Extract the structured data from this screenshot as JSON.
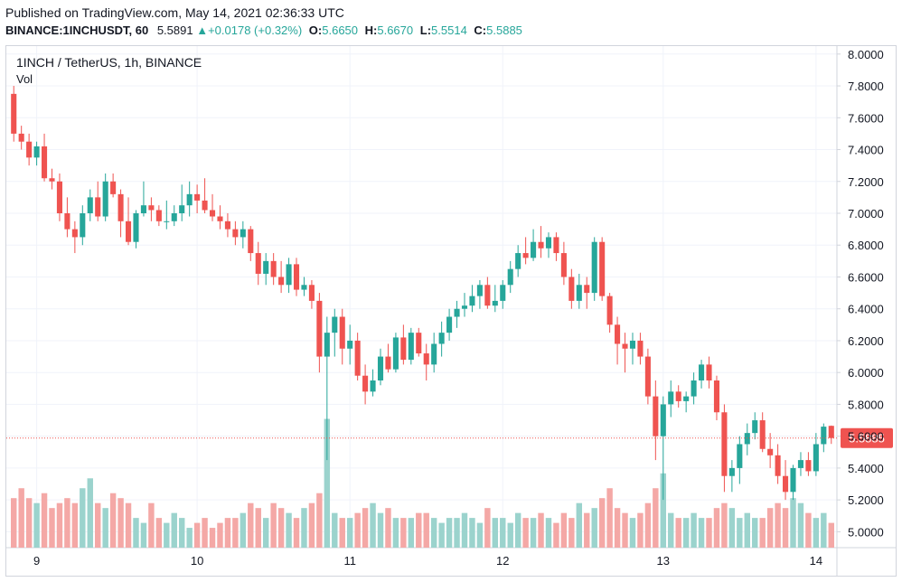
{
  "header": {
    "published": "Published on TradingView.com, May 14, 2021 02:36:33 UTC",
    "symbol": "BINANCE:1INCHUSDT, 60",
    "price": "5.5891",
    "change": "+0.0178 (+0.32%)",
    "o_label": "O:",
    "o_value": "5.6650",
    "h_label": "H:",
    "h_value": "5.6670",
    "l_label": "L:",
    "l_value": "5.5514",
    "c_label": "C:",
    "c_value": "5.5885"
  },
  "legend": {
    "title": "1INCH / TetherUS, 1h, BINANCE",
    "volume": "Vol"
  },
  "colors": {
    "up": "#26a69a",
    "down": "#ef5350",
    "vol_up": "#9bd3cd",
    "vol_down": "#f4a8a6",
    "grid": "#f0f3fa",
    "axis_line": "#d1d4dc",
    "last_price": "#ef5350"
  },
  "chart_data": {
    "type": "candlestick",
    "interval": "1h",
    "ylim": [
      4.9,
      8.05
    ],
    "y_ticks": [
      "8.0000",
      "7.8000",
      "7.6000",
      "7.4000",
      "7.2000",
      "7.0000",
      "6.8000",
      "6.6000",
      "6.4000",
      "6.2000",
      "6.0000",
      "5.8000",
      "5.6000",
      "5.4000",
      "5.2000",
      "5.0000"
    ],
    "x_ticks": [
      {
        "label": "9",
        "index": 3
      },
      {
        "label": "10",
        "index": 24
      },
      {
        "label": "11",
        "index": 44
      },
      {
        "label": "12",
        "index": 64
      },
      {
        "label": "13",
        "index": 85
      },
      {
        "label": "14",
        "index": 105
      }
    ],
    "last_price": 5.5885,
    "last_price_label": "5.5885",
    "candles": [
      [
        7.75,
        7.8,
        7.45,
        7.5
      ],
      [
        7.5,
        7.55,
        7.4,
        7.45
      ],
      [
        7.45,
        7.5,
        7.3,
        7.35
      ],
      [
        7.35,
        7.45,
        7.3,
        7.42
      ],
      [
        7.42,
        7.5,
        7.2,
        7.22
      ],
      [
        7.22,
        7.28,
        7.15,
        7.2
      ],
      [
        7.2,
        7.25,
        6.95,
        7.0
      ],
      [
        7.0,
        7.1,
        6.85,
        6.9
      ],
      [
        6.9,
        6.95,
        6.75,
        6.85
      ],
      [
        6.85,
        7.05,
        6.8,
        7.0
      ],
      [
        7.0,
        7.15,
        6.95,
        7.1
      ],
      [
        7.1,
        7.2,
        6.95,
        6.98
      ],
      [
        6.98,
        7.25,
        6.95,
        7.2
      ],
      [
        7.2,
        7.25,
        7.1,
        7.12
      ],
      [
        7.12,
        7.15,
        6.85,
        6.95
      ],
      [
        6.95,
        7.1,
        6.8,
        6.82
      ],
      [
        6.82,
        7.02,
        6.78,
        7.0
      ],
      [
        7.0,
        7.2,
        6.98,
        7.05
      ],
      [
        7.05,
        7.1,
        6.95,
        7.02
      ],
      [
        7.02,
        7.05,
        6.92,
        6.95
      ],
      [
        6.95,
        7.08,
        6.9,
        6.95
      ],
      [
        6.95,
        7.05,
        6.92,
        7.0
      ],
      [
        7.0,
        7.18,
        6.95,
        7.05
      ],
      [
        7.05,
        7.2,
        6.98,
        7.12
      ],
      [
        7.12,
        7.18,
        7.0,
        7.08
      ],
      [
        7.08,
        7.22,
        7.0,
        7.02
      ],
      [
        7.02,
        7.12,
        6.95,
        6.98
      ],
      [
        6.98,
        7.05,
        6.9,
        6.95
      ],
      [
        6.95,
        7.0,
        6.85,
        6.9
      ],
      [
        6.9,
        6.95,
        6.8,
        6.85
      ],
      [
        6.85,
        6.95,
        6.78,
        6.9
      ],
      [
        6.9,
        6.92,
        6.7,
        6.75
      ],
      [
        6.75,
        6.82,
        6.55,
        6.62
      ],
      [
        6.62,
        6.75,
        6.55,
        6.7
      ],
      [
        6.7,
        6.75,
        6.55,
        6.6
      ],
      [
        6.6,
        6.7,
        6.5,
        6.55
      ],
      [
        6.55,
        6.72,
        6.5,
        6.68
      ],
      [
        6.68,
        6.72,
        6.48,
        6.52
      ],
      [
        6.52,
        6.6,
        6.48,
        6.55
      ],
      [
        6.55,
        6.58,
        6.4,
        6.45
      ],
      [
        6.45,
        6.5,
        6.0,
        6.1
      ],
      [
        6.1,
        6.35,
        5.45,
        6.25
      ],
      [
        6.25,
        6.4,
        6.1,
        6.35
      ],
      [
        6.35,
        6.4,
        6.05,
        6.15
      ],
      [
        6.15,
        6.3,
        6.05,
        6.2
      ],
      [
        6.2,
        6.25,
        5.95,
        5.98
      ],
      [
        5.98,
        6.05,
        5.8,
        5.88
      ],
      [
        5.88,
        6.02,
        5.85,
        5.95
      ],
      [
        5.95,
        6.15,
        5.92,
        6.1
      ],
      [
        6.1,
        6.18,
        6.0,
        6.02
      ],
      [
        6.02,
        6.25,
        6.0,
        6.22
      ],
      [
        6.22,
        6.3,
        6.05,
        6.08
      ],
      [
        6.08,
        6.28,
        6.05,
        6.25
      ],
      [
        6.25,
        6.28,
        6.1,
        6.12
      ],
      [
        6.12,
        6.18,
        5.95,
        6.05
      ],
      [
        6.05,
        6.25,
        6.0,
        6.18
      ],
      [
        6.18,
        6.32,
        6.1,
        6.25
      ],
      [
        6.25,
        6.4,
        6.2,
        6.35
      ],
      [
        6.35,
        6.45,
        6.28,
        6.4
      ],
      [
        6.4,
        6.5,
        6.35,
        6.42
      ],
      [
        6.42,
        6.55,
        6.38,
        6.48
      ],
      [
        6.48,
        6.58,
        6.4,
        6.55
      ],
      [
        6.55,
        6.6,
        6.4,
        6.42
      ],
      [
        6.42,
        6.55,
        6.38,
        6.45
      ],
      [
        6.45,
        6.58,
        6.4,
        6.55
      ],
      [
        6.55,
        6.7,
        6.5,
        6.65
      ],
      [
        6.65,
        6.8,
        6.6,
        6.75
      ],
      [
        6.75,
        6.85,
        6.68,
        6.72
      ],
      [
        6.72,
        6.9,
        6.7,
        6.82
      ],
      [
        6.82,
        6.92,
        6.72,
        6.78
      ],
      [
        6.78,
        6.88,
        6.72,
        6.85
      ],
      [
        6.85,
        6.88,
        6.7,
        6.75
      ],
      [
        6.75,
        6.82,
        6.55,
        6.6
      ],
      [
        6.6,
        6.65,
        6.4,
        6.45
      ],
      [
        6.45,
        6.62,
        6.4,
        6.55
      ],
      [
        6.55,
        6.6,
        6.4,
        6.5
      ],
      [
        6.5,
        6.85,
        6.45,
        6.82
      ],
      [
        6.82,
        6.85,
        6.45,
        6.48
      ],
      [
        6.48,
        6.5,
        6.25,
        6.3
      ],
      [
        6.3,
        6.35,
        6.05,
        6.18
      ],
      [
        6.18,
        6.25,
        6.0,
        6.15
      ],
      [
        6.15,
        6.25,
        6.05,
        6.2
      ],
      [
        6.2,
        6.25,
        6.05,
        6.1
      ],
      [
        6.1,
        6.15,
        5.8,
        5.85
      ],
      [
        5.85,
        5.95,
        5.45,
        5.6
      ],
      [
        5.6,
        5.85,
        5.2,
        5.8
      ],
      [
        5.8,
        5.95,
        5.72,
        5.88
      ],
      [
        5.88,
        5.92,
        5.78,
        5.82
      ],
      [
        5.82,
        5.88,
        5.75,
        5.85
      ],
      [
        5.85,
        6.0,
        5.8,
        5.95
      ],
      [
        5.95,
        6.08,
        5.9,
        6.05
      ],
      [
        6.05,
        6.1,
        5.9,
        5.95
      ],
      [
        5.95,
        5.98,
        5.7,
        5.75
      ],
      [
        5.75,
        5.8,
        5.25,
        5.35
      ],
      [
        5.35,
        5.45,
        5.25,
        5.4
      ],
      [
        5.4,
        5.6,
        5.3,
        5.55
      ],
      [
        5.55,
        5.68,
        5.48,
        5.62
      ],
      [
        5.62,
        5.75,
        5.58,
        5.7
      ],
      [
        5.7,
        5.75,
        5.5,
        5.52
      ],
      [
        5.52,
        5.62,
        5.4,
        5.48
      ],
      [
        5.48,
        5.55,
        5.3,
        5.35
      ],
      [
        5.35,
        5.45,
        5.2,
        5.25
      ],
      [
        5.25,
        5.42,
        5.2,
        5.4
      ],
      [
        5.4,
        5.5,
        5.35,
        5.45
      ],
      [
        5.45,
        5.5,
        5.35,
        5.38
      ],
      [
        5.38,
        5.62,
        5.35,
        5.55
      ],
      [
        5.55,
        5.68,
        5.5,
        5.66
      ],
      [
        5.665,
        5.667,
        5.5514,
        5.5885
      ]
    ],
    "volumes": [
      0.5,
      0.6,
      0.5,
      0.45,
      0.55,
      0.4,
      0.45,
      0.5,
      0.45,
      0.6,
      0.7,
      0.45,
      0.4,
      0.55,
      0.5,
      0.45,
      0.3,
      0.25,
      0.45,
      0.3,
      0.25,
      0.35,
      0.3,
      0.2,
      0.25,
      0.3,
      0.2,
      0.25,
      0.3,
      0.3,
      0.35,
      0.45,
      0.4,
      0.3,
      0.45,
      0.4,
      0.35,
      0.3,
      0.4,
      0.45,
      0.55,
      1.3,
      0.35,
      0.3,
      0.3,
      0.35,
      0.4,
      0.45,
      0.35,
      0.4,
      0.3,
      0.3,
      0.3,
      0.35,
      0.35,
      0.3,
      0.25,
      0.3,
      0.3,
      0.35,
      0.3,
      0.25,
      0.4,
      0.3,
      0.3,
      0.25,
      0.35,
      0.3,
      0.3,
      0.35,
      0.3,
      0.25,
      0.35,
      0.3,
      0.45,
      0.35,
      0.4,
      0.5,
      0.6,
      0.4,
      0.35,
      0.3,
      0.35,
      0.45,
      0.6,
      0.75,
      0.35,
      0.3,
      0.3,
      0.35,
      0.3,
      0.3,
      0.4,
      0.45,
      0.4,
      0.3,
      0.35,
      0.3,
      0.3,
      0.4,
      0.45,
      0.4,
      0.5,
      0.45,
      0.35,
      0.3,
      0.35,
      0.25
    ]
  }
}
